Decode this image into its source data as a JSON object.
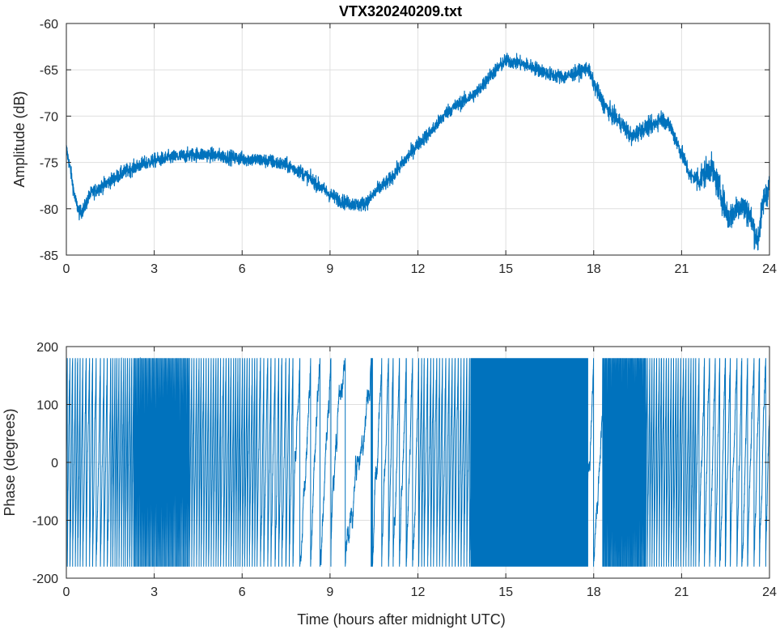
{
  "chart_data": [
    {
      "type": "line",
      "title": "VTX320240209.txt",
      "xlabel": "",
      "ylabel": "Amplitude (dB)",
      "xlim": [
        0,
        24
      ],
      "ylim": [
        -85,
        -60
      ],
      "xticks": [
        0,
        3,
        6,
        9,
        12,
        15,
        18,
        21,
        24
      ],
      "yticks": [
        -85,
        -80,
        -75,
        -70,
        -65,
        -60
      ],
      "grid": true,
      "color": "#0072BD",
      "series": [
        {
          "name": "",
          "x": [
            0,
            0.15,
            0.3,
            0.45,
            0.6,
            0.8,
            1.0,
            1.5,
            2.0,
            2.5,
            3.0,
            3.5,
            4.0,
            4.5,
            5.0,
            5.5,
            6.0,
            6.5,
            7.0,
            7.5,
            8.0,
            8.5,
            9.0,
            9.5,
            10.0,
            10.3,
            10.6,
            11.0,
            11.5,
            12.0,
            12.5,
            13.0,
            13.5,
            14.0,
            14.5,
            15.0,
            15.5,
            16.0,
            16.5,
            17.0,
            17.5,
            17.8,
            18.0,
            18.3,
            18.6,
            19.0,
            19.3,
            19.6,
            20.0,
            20.3,
            20.6,
            21.0,
            21.3,
            21.6,
            22.0,
            22.3,
            22.6,
            23.0,
            23.3,
            23.6,
            23.8,
            24.0
          ],
          "y": [
            -73.5,
            -76.0,
            -79.0,
            -80.5,
            -80.0,
            -78.5,
            -78.0,
            -77.0,
            -76.0,
            -75.3,
            -74.8,
            -74.5,
            -74.3,
            -74.1,
            -74.2,
            -74.4,
            -74.6,
            -74.7,
            -74.9,
            -75.3,
            -76.0,
            -77.2,
            -78.5,
            -79.3,
            -79.6,
            -79.2,
            -78.0,
            -77.0,
            -75.0,
            -73.0,
            -71.5,
            -69.5,
            -68.5,
            -67.5,
            -65.5,
            -64.0,
            -64.3,
            -64.8,
            -65.5,
            -65.8,
            -65.2,
            -64.8,
            -66.5,
            -68.5,
            -69.8,
            -71.0,
            -72.3,
            -71.5,
            -71.0,
            -70.2,
            -71.0,
            -74.0,
            -76.5,
            -76.8,
            -75.5,
            -78.0,
            -81.0,
            -79.5,
            -80.5,
            -83.5,
            -79.0,
            -77.5
          ]
        }
      ]
    },
    {
      "type": "line",
      "title": "",
      "xlabel": "Time (hours after midnight UTC)",
      "ylabel": "Phase (degrees)",
      "xlim": [
        0,
        24
      ],
      "ylim": [
        -200,
        200
      ],
      "xticks": [
        0,
        3,
        6,
        9,
        12,
        15,
        18,
        21,
        24
      ],
      "yticks": [
        -200,
        -100,
        0,
        100,
        200
      ],
      "grid": true,
      "color": "#0072BD",
      "wrap": [
        -180,
        180
      ],
      "series": [
        {
          "name": "",
          "segments": [
            {
              "t0": 0.0,
              "t1": 0.5,
              "period": 0.08
            },
            {
              "t0": 0.5,
              "t1": 1.5,
              "period": 0.12
            },
            {
              "t0": 1.5,
              "t1": 2.3,
              "period": 0.07
            },
            {
              "t0": 2.3,
              "t1": 4.2,
              "period": 0.035
            },
            {
              "t0": 4.2,
              "t1": 6.5,
              "period": 0.08
            },
            {
              "t0": 6.5,
              "t1": 7.8,
              "period": 0.12
            },
            {
              "t0": 7.8,
              "t1": 9.3,
              "period": 0.35
            },
            {
              "t0": 9.3,
              "t1": 10.5,
              "period": 0.6
            },
            {
              "t0": 10.5,
              "t1": 12.0,
              "period": 0.22
            },
            {
              "t0": 12.0,
              "t1": 13.8,
              "period": 0.1
            },
            {
              "t0": 13.8,
              "t1": 17.8,
              "period": 0.012
            },
            {
              "t0": 17.8,
              "t1": 18.3,
              "period": 0.3
            },
            {
              "t0": 18.3,
              "t1": 19.8,
              "period": 0.03
            },
            {
              "t0": 19.8,
              "t1": 21.5,
              "period": 0.08
            },
            {
              "t0": 21.5,
              "t1": 24.0,
              "period": 0.18
            }
          ]
        }
      ]
    }
  ]
}
